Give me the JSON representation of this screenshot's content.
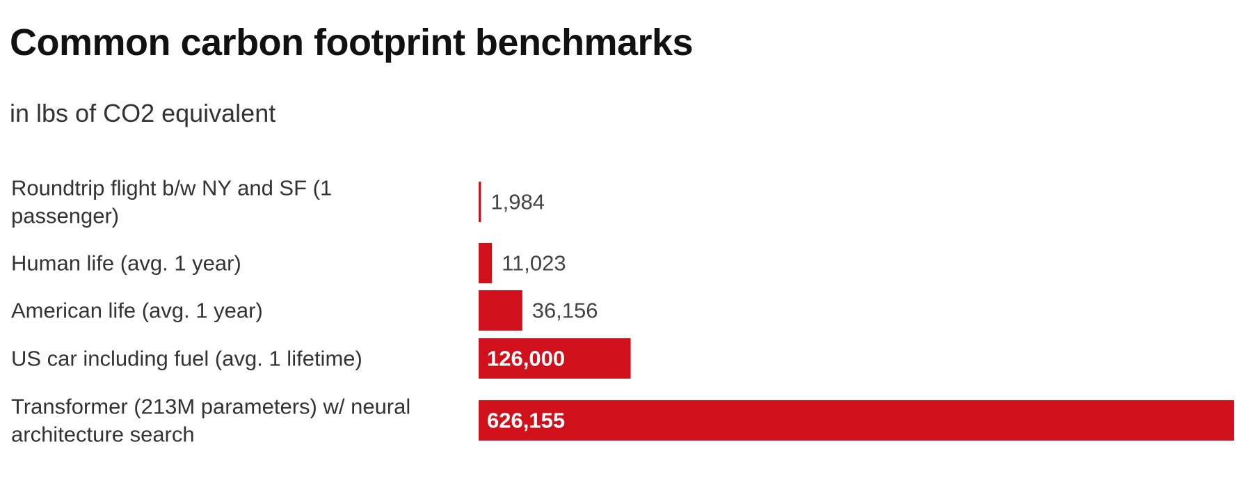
{
  "chart_data": {
    "type": "bar",
    "orientation": "horizontal",
    "title": "Common carbon footprint benchmarks",
    "subtitle": "in lbs of CO2 equivalent",
    "categories": [
      "Roundtrip flight b/w NY and SF (1 passenger)",
      "Human life (avg. 1 year)",
      "American life (avg. 1 year)",
      "US car including fuel (avg. 1 lifetime)",
      "Transformer (213M parameters) w/ neural architecture search"
    ],
    "category_lines": [
      [
        "Roundtrip flight b/w NY and SF (1",
        "passenger)"
      ],
      [
        "Human life (avg. 1 year)"
      ],
      [
        "American life (avg. 1 year)"
      ],
      [
        "US car including fuel (avg. 1 lifetime)"
      ],
      [
        "Transformer (213M parameters) w/ neural",
        "architecture search"
      ]
    ],
    "values": [
      1984,
      11023,
      36156,
      126000,
      626155
    ],
    "value_labels": [
      "1,984",
      "11,023",
      "36,156",
      "126,000",
      "626,155"
    ],
    "xlim": [
      0,
      626155
    ],
    "grid": false,
    "legend": "none",
    "bar_color": "#d0111b"
  }
}
